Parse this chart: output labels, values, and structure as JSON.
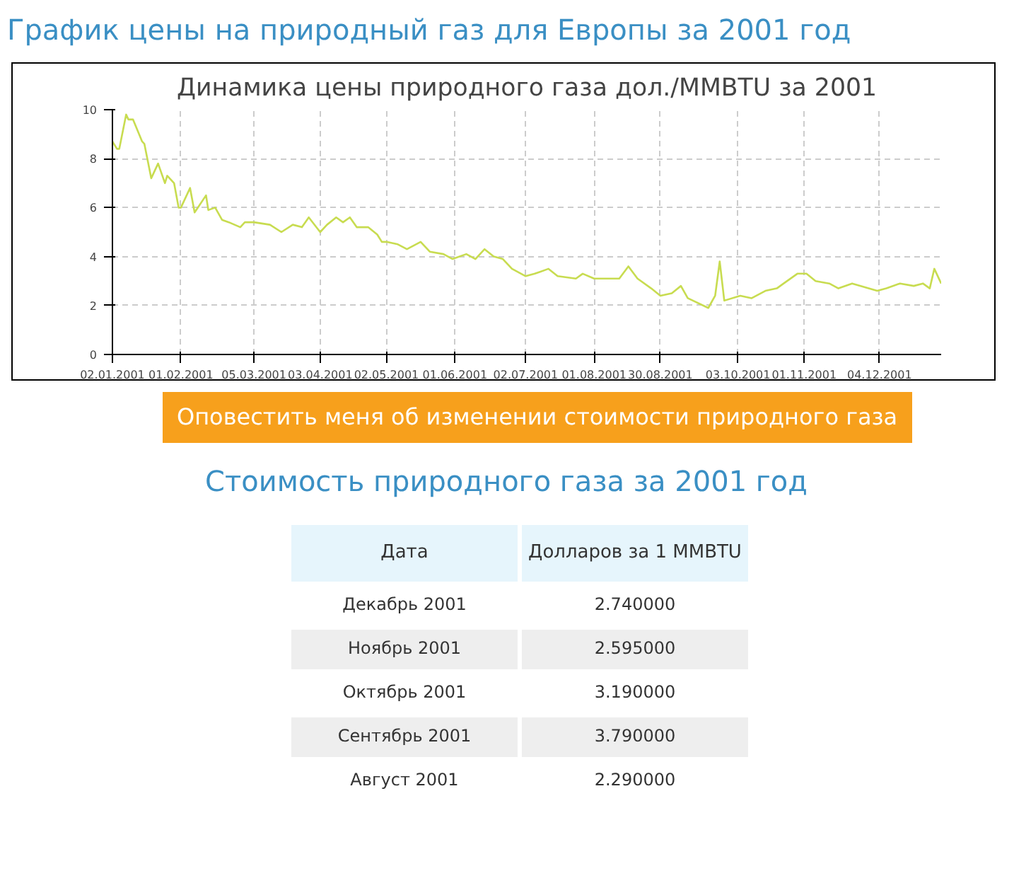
{
  "chart_data": {
    "type": "line",
    "title": "График цены на природный газ для Европы за 2001 год",
    "subtitle": "Динамика цены природного газа дол./MMBTU за 2001",
    "annotations": [
      "Оповестить меня об изменении стоимости природного газа",
      "Стоимость природного газа за 2001 год",
      "Дата",
      "Долларов за 1 MMBTU",
      "Декабрь 2001",
      "2.740000",
      "Ноябрь 2001",
      "2.595000",
      "Октябрь 2001",
      "3.190000",
      "Сентябрь 2001",
      "3.790000",
      "Август 2001",
      "2.290000"
    ],
    "x": [
      "2001-01-02",
      "2001-01-04",
      "2001-01-05",
      "2001-01-08",
      "2001-01-09",
      "2001-01-11",
      "2001-01-15",
      "2001-01-16",
      "2001-01-19",
      "2001-01-22",
      "2001-01-25",
      "2001-01-26",
      "2001-01-29",
      "2001-01-31",
      "2001-02-01",
      "2001-02-05",
      "2001-02-07",
      "2001-02-12",
      "2001-02-13",
      "2001-02-16",
      "2001-02-19",
      "2001-02-22",
      "2001-02-27",
      "2001-03-01",
      "2001-03-05",
      "2001-03-12",
      "2001-03-17",
      "2001-03-22",
      "2001-03-26",
      "2001-03-29",
      "2001-04-03",
      "2001-04-06",
      "2001-04-10",
      "2001-04-13",
      "2001-04-16",
      "2001-04-19",
      "2001-04-24",
      "2001-04-28",
      "2001-04-30",
      "2001-05-02",
      "2001-05-07",
      "2001-05-11",
      "2001-05-17",
      "2001-05-21",
      "2001-05-27",
      "2001-05-31",
      "2001-06-06",
      "2001-06-10",
      "2001-06-14",
      "2001-06-18",
      "2001-06-22",
      "2001-06-26",
      "2001-07-02",
      "2001-07-06",
      "2001-07-12",
      "2001-07-16",
      "2001-07-24",
      "2001-07-27",
      "2001-08-01",
      "2001-08-07",
      "2001-08-12",
      "2001-08-16",
      "2001-08-20",
      "2001-08-26",
      "2001-08-30",
      "2001-09-04",
      "2001-09-08",
      "2001-09-11",
      "2001-09-20",
      "2001-09-23",
      "2001-09-25",
      "2001-09-27",
      "2001-10-04",
      "2001-10-09",
      "2001-10-15",
      "2001-10-20",
      "2001-10-23",
      "2001-10-29",
      "2001-11-02",
      "2001-11-06",
      "2001-11-12",
      "2001-11-16",
      "2001-11-22",
      "2001-12-03",
      "2001-12-07",
      "2001-12-13",
      "2001-12-19",
      "2001-12-23",
      "2001-12-26",
      "2001-12-28",
      "2001-12-31"
    ],
    "series": [
      {
        "color": "#c8dc50",
        "values": [
          8.7,
          8.4,
          8.4,
          9.8,
          9.6,
          9.6,
          8.7,
          8.6,
          7.2,
          7.8,
          7.0,
          7.3,
          7.0,
          6.0,
          6.0,
          6.8,
          5.8,
          6.5,
          5.9,
          6.0,
          5.5,
          5.4,
          5.2,
          5.4,
          5.4,
          5.3,
          5.0,
          5.3,
          5.2,
          5.6,
          5.0,
          5.3,
          5.6,
          5.4,
          5.6,
          5.2,
          5.2,
          4.9,
          4.6,
          4.6,
          4.5,
          4.3,
          4.6,
          4.2,
          4.1,
          3.9,
          4.1,
          3.9,
          4.3,
          4.0,
          3.9,
          3.5,
          3.2,
          3.3,
          3.5,
          3.2,
          3.1,
          3.3,
          3.1,
          3.1,
          3.1,
          3.6,
          3.1,
          2.7,
          2.4,
          2.5,
          2.8,
          2.3,
          1.9,
          2.4,
          3.8,
          2.2,
          2.4,
          2.3,
          2.6,
          2.7,
          2.9,
          3.3,
          3.3,
          3.0,
          2.9,
          2.7,
          2.9,
          2.6,
          2.7,
          2.9,
          2.8,
          2.9,
          2.7,
          3.5,
          2.9
        ]
      }
    ],
    "xlim": [
      "2001-01-02",
      "2001-12-31"
    ],
    "xticks": [
      {
        "value": "2001-01-02",
        "label": "02.01.2001"
      },
      {
        "value": "2001-02-01",
        "label": "01.02.2001"
      },
      {
        "value": "2001-03-05",
        "label": "05.03.2001"
      },
      {
        "value": "2001-04-03",
        "label": "03.04.2001"
      },
      {
        "value": "2001-05-02",
        "label": "02.05.2001"
      },
      {
        "value": "2001-06-01",
        "label": "01.06.2001"
      },
      {
        "value": "2001-07-02",
        "label": "02.07.2001"
      },
      {
        "value": "2001-08-01",
        "label": "01.08.2001"
      },
      {
        "value": "2001-08-30",
        "label": "30.08.2001"
      },
      {
        "value": "2001-10-03",
        "label": "03.10.2001"
      },
      {
        "value": "2001-11-01",
        "label": "01.11.2001"
      },
      {
        "value": "2001-12-04",
        "label": "04.12.2001"
      }
    ],
    "ylim": [
      0,
      10
    ],
    "yticks": [
      0,
      2,
      4,
      6,
      8,
      10
    ],
    "grid": true,
    "line_style": "solid"
  }
}
